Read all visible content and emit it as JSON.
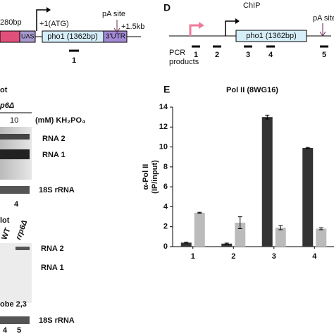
{
  "diagram_top": {
    "left_label": "280bp",
    "uas": "UAS",
    "atg": "+1(ATG)",
    "gene": "pho1 (1362bp)",
    "utr": "3'UTR",
    "pa_site": "pA site",
    "end": "+1.5kb",
    "product": "1"
  },
  "panel_d": {
    "letter": "D",
    "title": "ChIP",
    "pa_site": "pA site",
    "gene": "pho1 (1362bp)",
    "pcr_label": [
      "PCR",
      "products"
    ],
    "products": [
      "1",
      "2",
      "3",
      "4",
      "5"
    ]
  },
  "blot_top": {
    "title": "ot",
    "strain": "p6Δ",
    "conc": "10",
    "conc_unit": "(mM) KH₂PO₄",
    "rna2": "RNA 2",
    "rna1": "RNA 1",
    "rrna": "18S rRNA",
    "lane": "4"
  },
  "blot_bottom": {
    "title": "lot",
    "wt": "WT",
    "strain": "rrp6Δ",
    "rna2": "RNA 2",
    "rna1": "RNA 1",
    "probe": "obe 2,3",
    "rrna": "18S rRNA",
    "lanes": [
      "4",
      "5"
    ]
  },
  "chart_data": {
    "type": "bar",
    "letter": "E",
    "title": "Pol II (8WG16)",
    "y_label": [
      "α-Pol II",
      "(IP/input)"
    ],
    "categories": [
      "1",
      "2",
      "3",
      "4"
    ],
    "series": [
      {
        "color": "#333333",
        "values": [
          0.4,
          0.3,
          13.0,
          9.9
        ],
        "errors": [
          0.05,
          0.05,
          0.2,
          0.05
        ]
      },
      {
        "color": "#bbbbbb",
        "values": [
          3.4,
          2.4,
          1.9,
          1.8
        ],
        "errors": [
          0.05,
          0.6,
          0.2,
          0.1
        ]
      }
    ],
    "ylim": [
      0,
      14
    ],
    "yticks": [
      0,
      2,
      4,
      6,
      8,
      10,
      12,
      14
    ]
  }
}
